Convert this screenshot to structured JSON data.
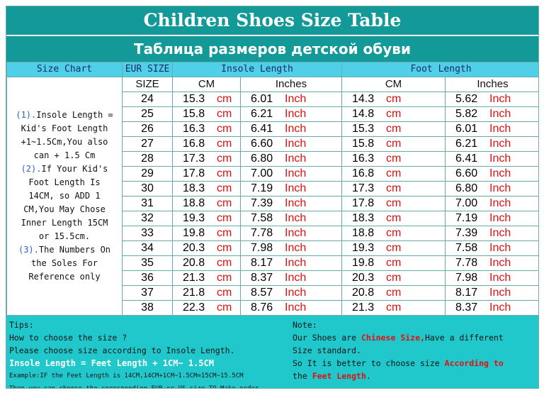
{
  "title": "Children Shoes Size Table",
  "subtitle": "Таблица размеров детской обуви",
  "headers": {
    "size_chart": "Size Chart",
    "eur_size": "EUR SIZE",
    "insole_length": "Insole Length",
    "foot_length": "Foot Length",
    "size": "SIZE",
    "cm": "CM",
    "inches": "Inches"
  },
  "units": {
    "cm": "cm",
    "inch": "Inch"
  },
  "side_notes": {
    "p1_num": "(1).",
    "p1_text_a": "Insole Length =",
    "p1_text_b": "Kid's Foot Length",
    "p1_text_c": "+1~1.5Cm,You also",
    "p1_text_d": "can + 1.5 Cm",
    "p2_num": "(2).",
    "p2_text_a": "If Your Kid's",
    "p2_text_b": "Foot Length Is",
    "p2_text_c": "14CM,  so ADD 1",
    "p2_text_d": "CM,You May Chose",
    "p2_text_e": "Inner Length 15CM",
    "p2_text_f": "or 15.5cm.",
    "p3_num": "(3).",
    "p3_text_a": "The Numbers On",
    "p3_text_b": "the Soles For",
    "p3_text_c": "Reference only"
  },
  "rows": [
    {
      "size": "24",
      "insole_cm": "15.3",
      "insole_in": "6.01",
      "foot_cm": "14.3",
      "foot_in": "5.62"
    },
    {
      "size": "25",
      "insole_cm": "15.8",
      "insole_in": "6.21",
      "foot_cm": "14.8",
      "foot_in": "5.82"
    },
    {
      "size": "26",
      "insole_cm": "16.3",
      "insole_in": "6.41",
      "foot_cm": "15.3",
      "foot_in": "6.01"
    },
    {
      "size": "27",
      "insole_cm": "16.8",
      "insole_in": "6.60",
      "foot_cm": "15.8",
      "foot_in": "6.21"
    },
    {
      "size": "28",
      "insole_cm": "17.3",
      "insole_in": "6.80",
      "foot_cm": "16.3",
      "foot_in": "6.41"
    },
    {
      "size": "29",
      "insole_cm": "17.8",
      "insole_in": "7.00",
      "foot_cm": "16.8",
      "foot_in": "6.60"
    },
    {
      "size": "30",
      "insole_cm": "18.3",
      "insole_in": "7.19",
      "foot_cm": "17.3",
      "foot_in": "6.80"
    },
    {
      "size": "31",
      "insole_cm": "18.8",
      "insole_in": "7.39",
      "foot_cm": "17.8",
      "foot_in": "7.00"
    },
    {
      "size": "32",
      "insole_cm": "19.3",
      "insole_in": "7.58",
      "foot_cm": "18.3",
      "foot_in": "7.19"
    },
    {
      "size": "33",
      "insole_cm": "19.8",
      "insole_in": "7.78",
      "foot_cm": "18.8",
      "foot_in": "7.39"
    },
    {
      "size": "34",
      "insole_cm": "20.3",
      "insole_in": "7.98",
      "foot_cm": "19.3",
      "foot_in": "7.58"
    },
    {
      "size": "35",
      "insole_cm": "20.8",
      "insole_in": "8.17",
      "foot_cm": "19.8",
      "foot_in": "7.78"
    },
    {
      "size": "36",
      "insole_cm": "21.3",
      "insole_in": "8.37",
      "foot_cm": "20.3",
      "foot_in": "7.98"
    },
    {
      "size": "37",
      "insole_cm": "21.8",
      "insole_in": "8.57",
      "foot_cm": "20.8",
      "foot_in": "8.17"
    },
    {
      "size": "38",
      "insole_cm": "22.3",
      "insole_in": "8.76",
      "foot_cm": "21.3",
      "foot_in": "8.37"
    }
  ],
  "tips": {
    "heading": "Tips:",
    "line1": "How to choose the size ?",
    "line2": "Please choose size according to Insole Length.",
    "line3": "Insole Length = Feet Length + 1CM~ 1.5CM",
    "line4": "Example:IF the Feet Length is 14CM,14CM+1CM~1.5CM=15CM~15.5CM",
    "line5": "Then you can choose the coresponding EUR or US size TO Make order."
  },
  "note": {
    "heading": "Note:",
    "l1_a": "Our Shoes are ",
    "l1_b": "Chinese Size,",
    "l1_c": "Have a different",
    "l2": "Size standard.",
    "l3_a": "So It is better to choose size ",
    "l3_b": "According to",
    "l4_a": "the ",
    "l4_b": "Feet Length",
    "l4_c": "."
  },
  "colors": {
    "header_teal": "#139a98",
    "header_cyan": "#4fd0e8",
    "footer_bg": "#20c8cc",
    "unit_red": "#e01010"
  }
}
